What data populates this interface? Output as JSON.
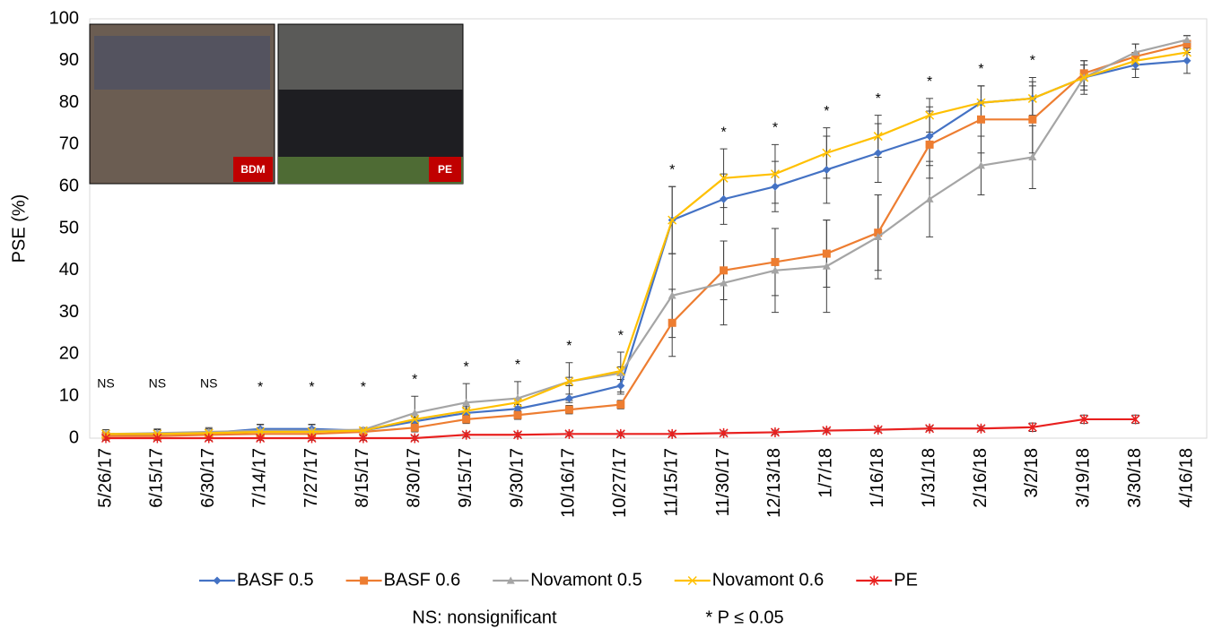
{
  "chart_data": {
    "type": "line",
    "ylabel": "PSE (%)",
    "categories": [
      "5/26/17",
      "6/15/17",
      "6/30/17",
      "7/14/17",
      "7/27/17",
      "8/15/17",
      "8/30/17",
      "9/15/17",
      "9/30/17",
      "10/16/17",
      "10/27/17",
      "11/15/17",
      "11/30/17",
      "12/13/18",
      "1/7/18",
      "1/16/18",
      "1/31/18",
      "2/16/18",
      "3/2/18",
      "3/19/18",
      "3/30/18",
      "4/16/18"
    ],
    "ylim": [
      0,
      100
    ],
    "yticks": [
      0,
      10,
      20,
      30,
      40,
      50,
      60,
      70,
      80,
      90,
      100
    ],
    "grid": false,
    "legend": "bottom",
    "series": [
      {
        "name": "BASF 0.5",
        "color": "#4472c4",
        "marker": "diamond",
        "values": [
          0.5,
          1,
          1.2,
          2.2,
          2.2,
          1.8,
          4,
          6,
          7,
          9.5,
          12.5,
          52,
          57,
          60,
          64,
          68,
          72,
          80,
          81,
          86,
          89,
          90
        ],
        "errors": [
          1,
          1,
          1,
          1,
          1,
          0.5,
          1,
          1,
          1,
          1,
          1.5,
          8,
          6,
          6,
          8,
          7,
          7,
          4,
          5,
          3,
          3,
          3
        ]
      },
      {
        "name": "BASF 0.6",
        "color": "#ed7d31",
        "marker": "square",
        "values": [
          0.5,
          0.5,
          0.8,
          1,
          1,
          1.5,
          2.5,
          4.5,
          5.5,
          6.8,
          8,
          27.5,
          40,
          42,
          44,
          49,
          70,
          76,
          76,
          87,
          91,
          94
        ],
        "errors": [
          0.5,
          0.5,
          0.5,
          0.5,
          0.5,
          0.5,
          1,
          1,
          1,
          1,
          1,
          8,
          7,
          8,
          8,
          9,
          8,
          8,
          8,
          3,
          3,
          2
        ]
      },
      {
        "name": "Novamont 0.5",
        "color": "#a5a5a5",
        "marker": "triangle",
        "values": [
          1,
          1.2,
          1.5,
          1.8,
          1.8,
          2,
          6,
          8.5,
          9.5,
          13.5,
          15.5,
          34,
          37,
          40,
          41,
          48,
          57,
          65,
          67,
          86,
          92,
          95
        ],
        "errors": [
          1,
          1,
          1,
          1.5,
          1.5,
          0.5,
          4,
          4.5,
          4,
          4.5,
          5,
          10,
          10,
          10,
          11,
          10,
          9,
          7,
          7.5,
          4,
          2,
          1
        ]
      },
      {
        "name": "Novamont 0.6",
        "color": "#ffc000",
        "marker": "x",
        "values": [
          1,
          1,
          1.2,
          1.5,
          1.5,
          1.8,
          4.5,
          6.5,
          8.5,
          13.5,
          16,
          52,
          62,
          63,
          68,
          72,
          77,
          80,
          81,
          86,
          90,
          92
        ],
        "errors": [
          1,
          1,
          1,
          1,
          1,
          0.5,
          1,
          1,
          1,
          1,
          1,
          8,
          7,
          7,
          6,
          5,
          4,
          4,
          4,
          3,
          2,
          2
        ]
      },
      {
        "name": "PE",
        "color": "#e8201f",
        "marker": "star",
        "values": [
          0,
          0,
          0,
          0,
          0,
          0,
          0,
          0.8,
          0.8,
          1,
          1,
          1,
          1.2,
          1.4,
          1.8,
          2,
          2.3,
          2.3,
          2.6,
          4.5,
          4.5,
          null
        ],
        "errors": [
          0.5,
          0.5,
          0.5,
          0.5,
          0.5,
          0.5,
          0.5,
          0.5,
          0.5,
          0.5,
          0.5,
          0.5,
          0.5,
          0.5,
          0.5,
          0.5,
          0.5,
          0.5,
          1,
          1,
          1,
          null
        ]
      }
    ],
    "significance": [
      "NS",
      "NS",
      "NS",
      "*",
      "*",
      "*",
      "*",
      "*",
      "*",
      "*",
      "*",
      "*",
      "*",
      "*",
      "*",
      "*",
      "*",
      "*",
      "*",
      null,
      null,
      null
    ],
    "inset_labels": [
      "BDM",
      "PE"
    ],
    "footnotes": [
      "NS: nonsignificant",
      "* P ≤ 0.05"
    ]
  }
}
